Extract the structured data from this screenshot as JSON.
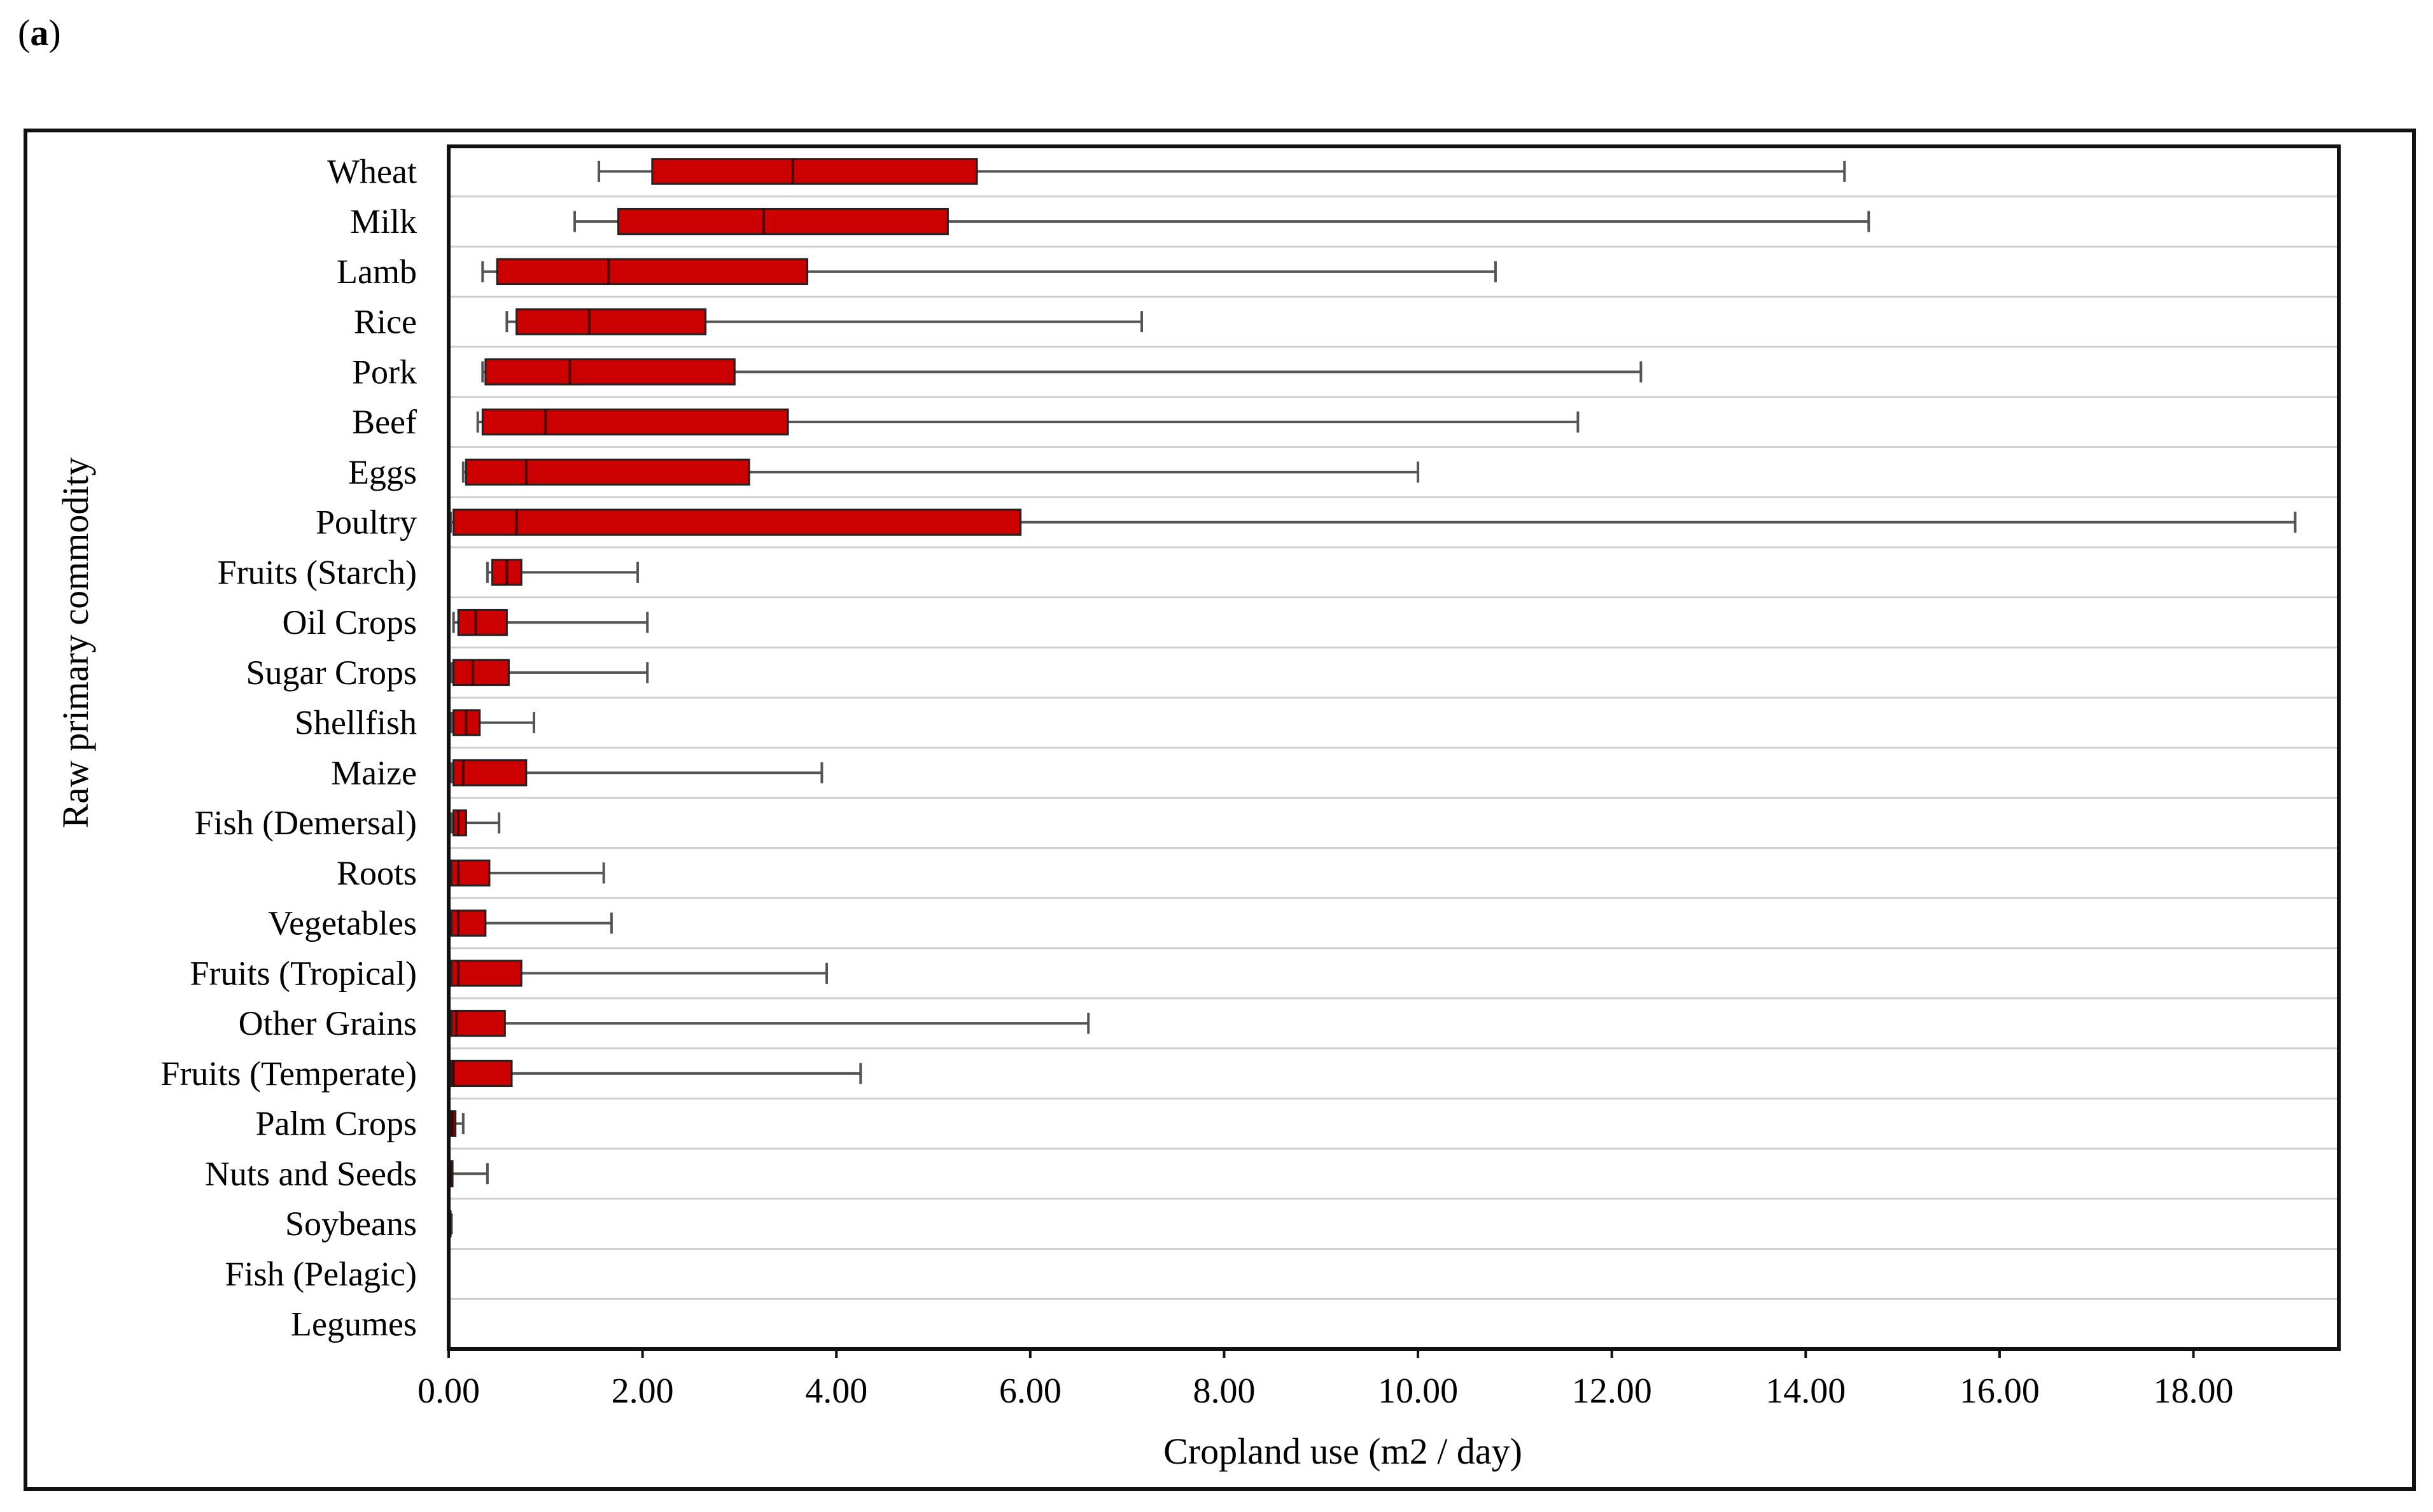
{
  "panel_label": {
    "open": "(",
    "letter": "a",
    "close": ")"
  },
  "chart_data": {
    "type": "boxplot",
    "orientation": "horizontal",
    "xlabel": "Cropland use (m2 / day)",
    "ylabel": "Raw primary commodity",
    "xlim": [
      0,
      19.5
    ],
    "xticks": [
      "0.00",
      "2.00",
      "4.00",
      "6.00",
      "8.00",
      "10.00",
      "12.00",
      "14.00",
      "16.00",
      "18.00"
    ],
    "grid": "horizontal",
    "colors": {
      "box": "#cc0000",
      "box_stroke": "#222222",
      "whisker": "#555555",
      "grid": "#cfcfcf"
    },
    "categories": [
      {
        "name": "Wheat",
        "min": 1.55,
        "q1": 2.1,
        "median": 3.55,
        "q3": 5.45,
        "max": 14.4
      },
      {
        "name": "Milk",
        "min": 1.3,
        "q1": 1.75,
        "median": 3.25,
        "q3": 5.15,
        "max": 14.65
      },
      {
        "name": "Lamb",
        "min": 0.35,
        "q1": 0.5,
        "median": 1.65,
        "q3": 3.7,
        "max": 10.8
      },
      {
        "name": "Rice",
        "min": 0.6,
        "q1": 0.7,
        "median": 1.45,
        "q3": 2.65,
        "max": 7.15
      },
      {
        "name": "Pork",
        "min": 0.35,
        "q1": 0.38,
        "median": 1.25,
        "q3": 2.95,
        "max": 12.3
      },
      {
        "name": "Beef",
        "min": 0.3,
        "q1": 0.35,
        "median": 1.0,
        "q3": 3.5,
        "max": 11.65
      },
      {
        "name": "Eggs",
        "min": 0.15,
        "q1": 0.18,
        "median": 0.8,
        "q3": 3.1,
        "max": 10.0
      },
      {
        "name": "Poultry",
        "min": 0.02,
        "q1": 0.05,
        "median": 0.7,
        "q3": 5.9,
        "max": 19.05
      },
      {
        "name": "Fruits (Starch)",
        "min": 0.4,
        "q1": 0.45,
        "median": 0.6,
        "q3": 0.75,
        "max": 1.95
      },
      {
        "name": "Oil Crops",
        "min": 0.05,
        "q1": 0.1,
        "median": 0.28,
        "q3": 0.6,
        "max": 2.05
      },
      {
        "name": "Sugar Crops",
        "min": 0.03,
        "q1": 0.05,
        "median": 0.25,
        "q3": 0.62,
        "max": 2.05
      },
      {
        "name": "Shellfish",
        "min": 0.03,
        "q1": 0.05,
        "median": 0.18,
        "q3": 0.32,
        "max": 0.88
      },
      {
        "name": "Maize",
        "min": 0.03,
        "q1": 0.05,
        "median": 0.15,
        "q3": 0.8,
        "max": 3.85
      },
      {
        "name": "Fish (Demersal)",
        "min": 0.03,
        "q1": 0.05,
        "median": 0.1,
        "q3": 0.18,
        "max": 0.52
      },
      {
        "name": "Roots",
        "min": 0.02,
        "q1": 0.03,
        "median": 0.1,
        "q3": 0.42,
        "max": 1.6
      },
      {
        "name": "Vegetables",
        "min": 0.02,
        "q1": 0.03,
        "median": 0.1,
        "q3": 0.38,
        "max": 1.68
      },
      {
        "name": "Fruits (Tropical)",
        "min": 0.02,
        "q1": 0.03,
        "median": 0.1,
        "q3": 0.75,
        "max": 3.9
      },
      {
        "name": "Other Grains",
        "min": 0.02,
        "q1": 0.03,
        "median": 0.08,
        "q3": 0.58,
        "max": 6.6
      },
      {
        "name": "Fruits (Temperate)",
        "min": 0.02,
        "q1": 0.03,
        "median": 0.05,
        "q3": 0.65,
        "max": 4.25
      },
      {
        "name": "Palm Crops",
        "min": 0.01,
        "q1": 0.02,
        "median": 0.04,
        "q3": 0.07,
        "max": 0.15
      },
      {
        "name": "Nuts and Seeds",
        "min": 0.01,
        "q1": 0.01,
        "median": 0.02,
        "q3": 0.04,
        "max": 0.4
      },
      {
        "name": "Soybeans",
        "min": 0.0,
        "q1": 0.0,
        "median": 0.01,
        "q3": 0.02,
        "max": 0.03
      },
      {
        "name": "Fish (Pelagic)",
        "min": 0.0,
        "q1": 0.0,
        "median": 0.0,
        "q3": 0.0,
        "max": 0.0
      },
      {
        "name": "Legumes",
        "min": 0.0,
        "q1": 0.0,
        "median": 0.0,
        "q3": 0.0,
        "max": 0.0
      }
    ]
  }
}
